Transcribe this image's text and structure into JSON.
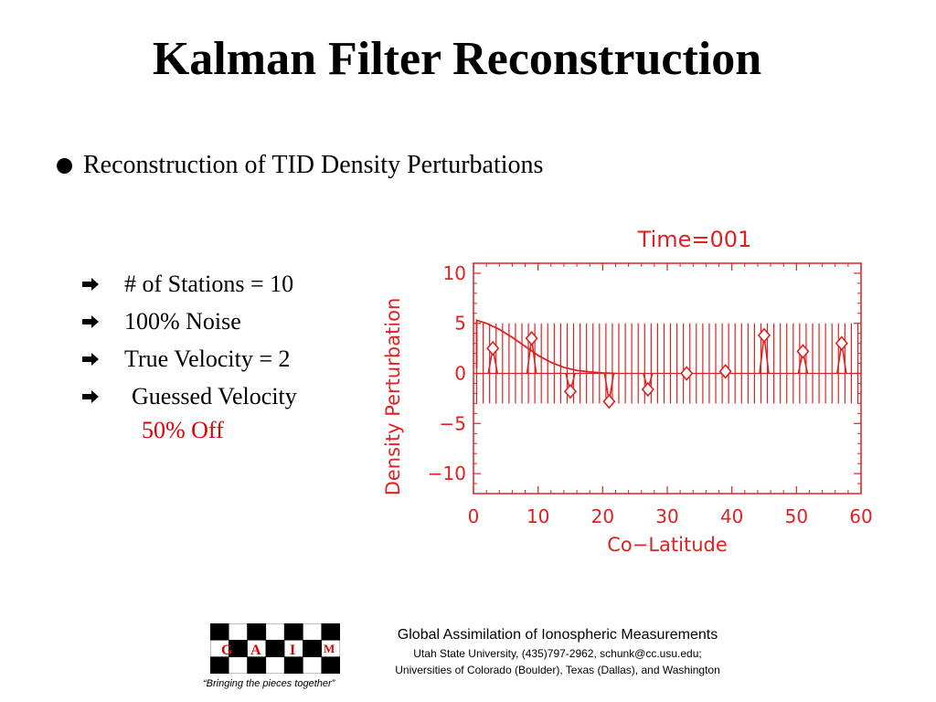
{
  "slide": {
    "title": "Kalman Filter Reconstruction",
    "main_bullet": "Reconstruction of TID Density Perturbations",
    "sub_bullets": [
      "# of Stations = 10",
      "100% Noise",
      "True Velocity = 2",
      "Guessed Velocity"
    ],
    "note": "50% Off"
  },
  "colors": {
    "note": "#e00000",
    "chart": "#dd2222"
  },
  "chart_data": {
    "type": "line",
    "title": "Time=001",
    "xlabel": "Co−Latitude",
    "ylabel": "Density Perturbation",
    "xlim": [
      0,
      60
    ],
    "ylim": [
      -12,
      11
    ],
    "xticks": [
      0,
      10,
      20,
      30,
      40,
      50,
      60
    ],
    "xtick_labels": [
      "0",
      "10",
      "20",
      "30",
      "40",
      "50",
      "60"
    ],
    "yticks": [
      -10,
      -5,
      0,
      5,
      10
    ],
    "ytick_labels": [
      "−10",
      "−5",
      "0",
      "5",
      "10"
    ],
    "grid_band": {
      "ymin": -3,
      "ymax": 5,
      "x_start": 0.5,
      "x_step": 1
    },
    "reconstruction": {
      "x": [
        0.5,
        2,
        4,
        6,
        8,
        10,
        12,
        14,
        16,
        18,
        20,
        22
      ],
      "y": [
        5.3,
        5.0,
        4.4,
        3.6,
        2.7,
        1.8,
        1.1,
        0.6,
        0.3,
        0.15,
        0.05,
        0
      ]
    },
    "stations": {
      "x": [
        3,
        9,
        15,
        21,
        27,
        33,
        39,
        45,
        51,
        57
      ],
      "y": [
        2.5,
        3.5,
        -1.8,
        -2.8,
        -1.6,
        0,
        0.2,
        3.8,
        2.2,
        3.0
      ]
    }
  },
  "footer": {
    "logo_letters": [
      "G",
      "A",
      "I",
      "M"
    ],
    "tagline": "“Bringing the pieces together”",
    "org": "Global Assimilation of Ionospheric Measurements",
    "line1": "Utah State University, (435)797-2962, schunk@cc.usu.edu;",
    "line2": "Universities of Colorado (Boulder), Texas (Dallas), and Washington"
  }
}
